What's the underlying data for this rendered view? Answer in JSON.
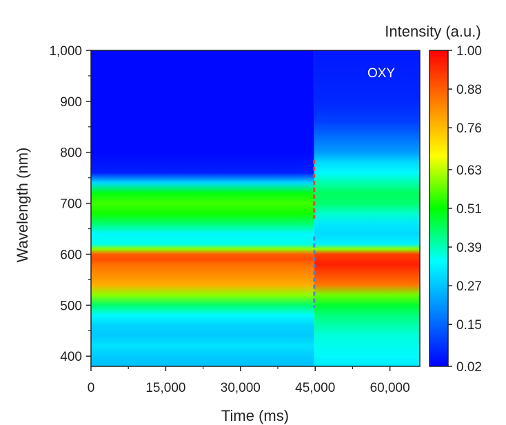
{
  "chart_data": {
    "type": "heatmap",
    "xlabel": "Time (ms)",
    "ylabel": "Wavelength (nm)",
    "xlim": [
      0,
      66000
    ],
    "ylim": [
      380,
      1000
    ],
    "xticks": [
      0,
      15000,
      30000,
      45000,
      60000
    ],
    "xtick_labels": [
      "0",
      "15,000",
      "30,000",
      "45,000",
      "60,000"
    ],
    "yticks": [
      400,
      500,
      600,
      700,
      800,
      900,
      1000
    ],
    "ytick_labels": [
      "400",
      "500",
      "600",
      "700",
      "800",
      "900",
      "1,000"
    ],
    "colorbar": {
      "title": "Intensity (a.u.)",
      "ticks": [
        0.02,
        0.15,
        0.27,
        0.39,
        0.51,
        0.63,
        0.76,
        0.88,
        1.0
      ],
      "tick_labels": [
        "0.02",
        "0.15",
        "0.27",
        "0.39",
        "0.51",
        "0.63",
        "0.76",
        "0.88",
        "1.00"
      ],
      "range": [
        0.02,
        1.0
      ],
      "colormap": [
        "#0000ff",
        "#0080ff",
        "#00ffff",
        "#00ff00",
        "#ffff00",
        "#ff8000",
        "#ff0000"
      ]
    },
    "annotation": "OXY",
    "transition_time": 44800,
    "markers": [
      {
        "time": 44800,
        "wl_range": [
          670,
          785
        ],
        "color": "#e0483a"
      },
      {
        "time": 44800,
        "wl_range": [
          495,
          635
        ],
        "color": "#5a7fd6"
      }
    ],
    "spectra": [
      {
        "phase": "before",
        "time_range": [
          0,
          44800
        ],
        "wavelengths": [
          380,
          400,
          420,
          440,
          460,
          480,
          500,
          520,
          540,
          560,
          580,
          590,
          600,
          610,
          620,
          640,
          660,
          680,
          700,
          720,
          740,
          760,
          800,
          900,
          1000
        ],
        "intensity": [
          0.27,
          0.28,
          0.31,
          0.28,
          0.29,
          0.34,
          0.44,
          0.6,
          0.78,
          0.82,
          0.86,
          0.9,
          0.88,
          0.6,
          0.36,
          0.34,
          0.44,
          0.52,
          0.55,
          0.5,
          0.3,
          0.06,
          0.03,
          0.03,
          0.03
        ]
      },
      {
        "phase": "after",
        "time_range": [
          44800,
          66000
        ],
        "wavelengths": [
          380,
          400,
          440,
          480,
          500,
          520,
          540,
          560,
          580,
          600,
          610,
          620,
          640,
          660,
          680,
          700,
          720,
          740,
          760,
          780,
          800,
          860,
          900,
          1000
        ],
        "intensity": [
          0.32,
          0.34,
          0.37,
          0.43,
          0.48,
          0.58,
          0.85,
          0.9,
          0.96,
          0.92,
          0.6,
          0.33,
          0.3,
          0.32,
          0.38,
          0.44,
          0.45,
          0.4,
          0.34,
          0.3,
          0.22,
          0.1,
          0.07,
          0.05
        ]
      }
    ]
  }
}
